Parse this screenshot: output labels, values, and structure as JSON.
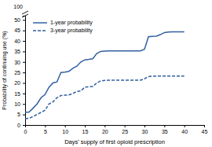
{
  "chart_data": {
    "type": "line",
    "xlabel": "Days' supply of first opioid prescription",
    "ylabel": "Probability of continuing use (%)",
    "annotations": [
      {
        "text": "100"
      }
    ],
    "x": [
      0,
      1,
      2,
      3,
      4,
      5,
      6,
      7,
      8,
      9,
      10,
      11,
      12,
      13,
      14,
      15,
      16,
      17,
      18,
      19,
      20,
      21,
      22,
      23,
      24,
      25,
      26,
      27,
      28,
      29,
      30,
      31,
      32,
      33,
      34,
      35,
      36,
      37,
      38,
      39,
      40
    ],
    "series": [
      {
        "name": "1-year probability",
        "color": "#3060a0",
        "line_style": "solid",
        "values": [
          6.0,
          6.2,
          8.0,
          10.0,
          13.0,
          14.5,
          18.0,
          20.0,
          20.5,
          25.0,
          25.2,
          25.5,
          27.0,
          28.0,
          30.0,
          31.0,
          31.2,
          31.5,
          34.0,
          35.0,
          35.2,
          35.3,
          35.3,
          35.3,
          35.3,
          35.3,
          35.3,
          35.3,
          35.3,
          35.3,
          36.0,
          42.0,
          42.2,
          42.3,
          43.0,
          44.0,
          44.2,
          44.3,
          44.3,
          44.3,
          44.3
        ]
      },
      {
        "name": "3-year probability",
        "color": "#3060a0",
        "line_style": "dashed",
        "values": [
          3.0,
          3.2,
          4.0,
          5.0,
          6.0,
          7.0,
          10.0,
          11.0,
          13.0,
          14.0,
          14.2,
          14.3,
          15.0,
          16.0,
          16.2,
          18.0,
          18.2,
          18.3,
          20.0,
          21.0,
          21.2,
          21.3,
          21.3,
          21.3,
          21.3,
          21.3,
          21.3,
          21.3,
          21.3,
          21.3,
          22.0,
          23.0,
          23.2,
          23.3,
          23.3,
          23.3,
          23.3,
          23.3,
          23.3,
          23.3,
          23.3
        ]
      }
    ],
    "xlim": [
      0,
      45
    ],
    "ylim": [
      0,
      52
    ],
    "xticks": [
      0,
      5,
      10,
      15,
      20,
      25,
      30,
      35,
      40,
      45
    ],
    "yticks": [
      0,
      5,
      10,
      15,
      20,
      25,
      30,
      35,
      40,
      45,
      50
    ],
    "legend": "upper-left"
  }
}
